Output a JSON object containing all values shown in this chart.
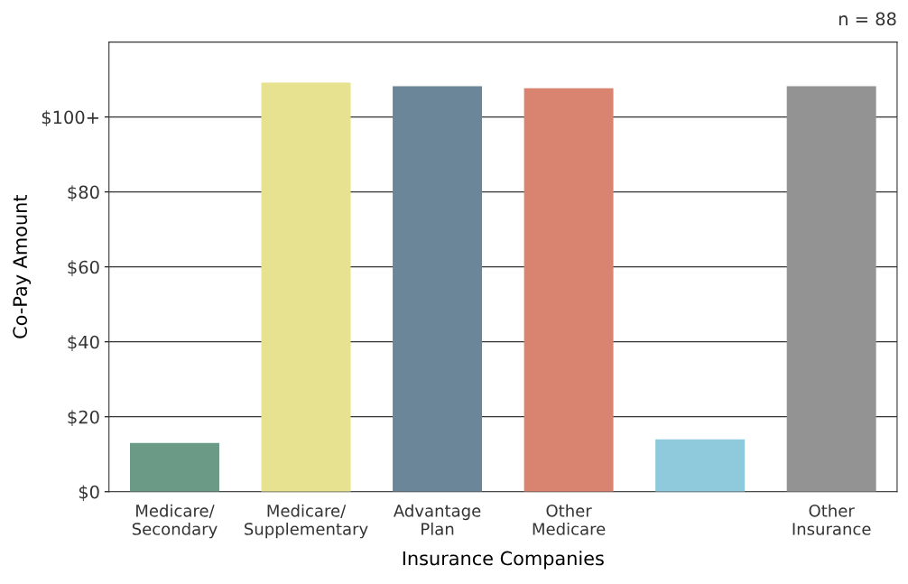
{
  "chart_data": {
    "type": "bar",
    "xlabel": "Insurance Companies",
    "ylabel": "Co-Pay Amount",
    "categories": [
      "Medicare/\nSecondary",
      "Medicare/\nSupplementary",
      "Advantage\nPlan",
      "Other\nMedicare",
      null,
      "Other\nInsurance"
    ],
    "values": [
      13,
      109.2,
      108.2,
      107.7,
      14,
      108.2
    ],
    "colors": [
      "#6b9a87",
      "#e7e290",
      "#6b8699",
      "#d98470",
      "#8ec9dc",
      "#939393"
    ],
    "ylim": [
      0,
      120
    ],
    "yticks": [
      {
        "value": 0,
        "label": "$0"
      },
      {
        "value": 20,
        "label": "$20"
      },
      {
        "value": 40,
        "label": "$40"
      },
      {
        "value": 60,
        "label": "$60"
      },
      {
        "value": 80,
        "label": "$80"
      },
      {
        "value": 100,
        "label": "$100+"
      }
    ],
    "grid": "y",
    "annotations": [
      "n = 88"
    ]
  }
}
